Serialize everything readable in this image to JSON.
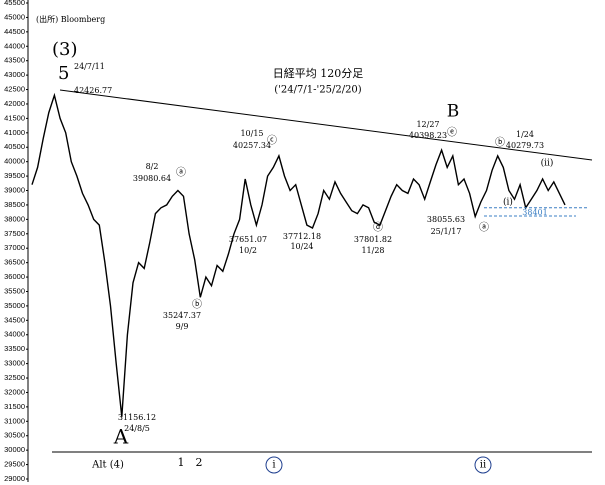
{
  "chart_data": {
    "type": "line",
    "values": [
      39200,
      39800,
      40800,
      41700,
      42300,
      41500,
      41000,
      40000,
      39500,
      38900,
      38500,
      38000,
      37800,
      36500,
      35000,
      33000,
      31156,
      34000,
      35800,
      36500,
      36300,
      37200,
      38200,
      38400,
      38500,
      38800,
      39000,
      38800,
      37500,
      36600,
      35300,
      36000,
      35700,
      36400,
      36200,
      36800,
      37500,
      38000,
      39400,
      38500,
      37800,
      38500,
      39500,
      39800,
      40200,
      39500,
      39000,
      39200,
      38500,
      37800,
      37700,
      38200,
      39000,
      38700,
      39300,
      38900,
      38600,
      38300,
      38200,
      38500,
      38400,
      37900,
      37800,
      38300,
      38800,
      39200,
      39000,
      38900,
      39400,
      39200,
      38700,
      39300,
      39900,
      40400,
      39800,
      40200,
      39200,
      39400,
      38900,
      38100,
      38600,
      39000,
      39700,
      40200,
      39800,
      39000,
      38700,
      39200,
      38400,
      38700,
      39000,
      39400,
      39000,
      39300,
      38900,
      38500
    ],
    "color": "#000000",
    "ylim": [
      29000,
      45500
    ],
    "yticks": [
      29000,
      29500,
      30000,
      30500,
      31000,
      31500,
      32000,
      32500,
      33000,
      33500,
      34000,
      34500,
      35000,
      35500,
      36000,
      36500,
      37000,
      37500,
      38000,
      38500,
      39000,
      39500,
      40000,
      40500,
      41000,
      41500,
      42000,
      42500,
      43000,
      43500,
      44000,
      44500,
      45000,
      45500
    ],
    "level": 38401,
    "annotations": [
      "(出所) Bloomberg",
      "(3)",
      "5",
      "24/7/11",
      "42426.77",
      "日経平均 120分足",
      "('24/7/1-'25/2/20)",
      "B",
      "12/27",
      "40398.23",
      "ⓔ",
      "ⓑ",
      "1/24",
      "40279.73",
      "(ii)",
      "8/2",
      "39080.64",
      "ⓐ",
      "10/15",
      "40257.34",
      "ⓒ",
      "37651.07",
      "10/2",
      "37712.18",
      "10/24",
      "ⓓ",
      "37801.82",
      "11/28",
      "38055.63",
      "25/1/17",
      "ⓐ",
      "(i)",
      "35247.37",
      "9/9",
      "ⓑ",
      "31156.12",
      "24/8/5",
      "A",
      "Alt (4)",
      "1",
      "2",
      "i",
      "ii"
    ]
  }
}
